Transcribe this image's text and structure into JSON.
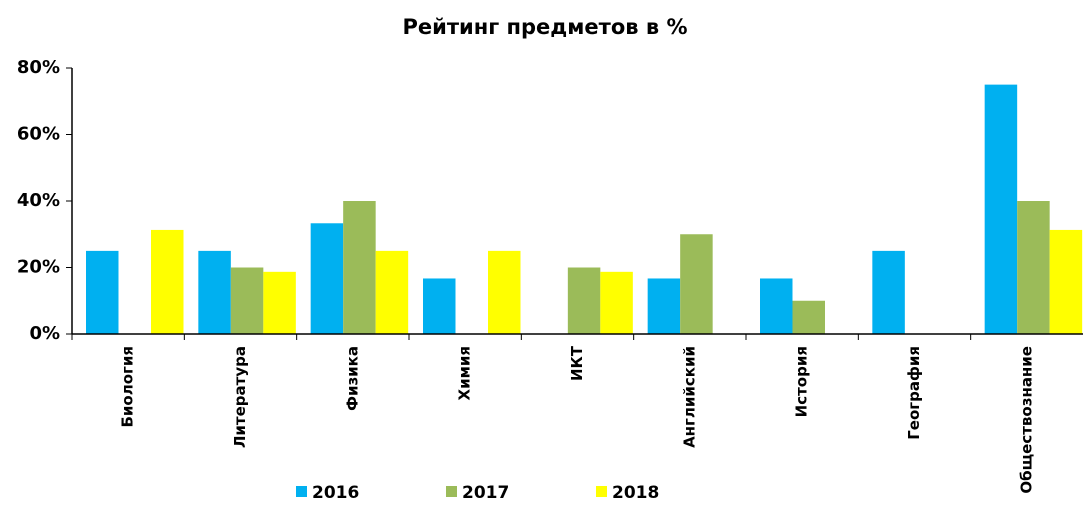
{
  "chart_data": {
    "type": "bar",
    "title": "Рейтинг предметов в %",
    "categories": [
      "Биология",
      "Литература",
      "Физика",
      "Химия",
      "ИКТ",
      "Английский",
      "История",
      "География",
      "Обществознание"
    ],
    "series": [
      {
        "name": "2016",
        "color": "#00b0f0",
        "values": [
          25,
          25,
          33.3,
          16.7,
          0,
          16.7,
          16.7,
          25,
          75
        ]
      },
      {
        "name": "2017",
        "color": "#9bbb59",
        "values": [
          0,
          20,
          40,
          0,
          20,
          30,
          10,
          0,
          40
        ]
      },
      {
        "name": "2018",
        "color": "#ffff00",
        "values": [
          31.3,
          18.7,
          25,
          25,
          18.7,
          0,
          0,
          0,
          31.3
        ]
      }
    ],
    "ylim": [
      0,
      80
    ],
    "yticks": [
      {
        "value": 0,
        "label": "0%"
      },
      {
        "value": 20,
        "label": "20%"
      },
      {
        "value": 40,
        "label": "40%"
      },
      {
        "value": 60,
        "label": "60%"
      },
      {
        "value": 80,
        "label": "80%"
      }
    ],
    "grid": false,
    "legend": "bottom"
  }
}
